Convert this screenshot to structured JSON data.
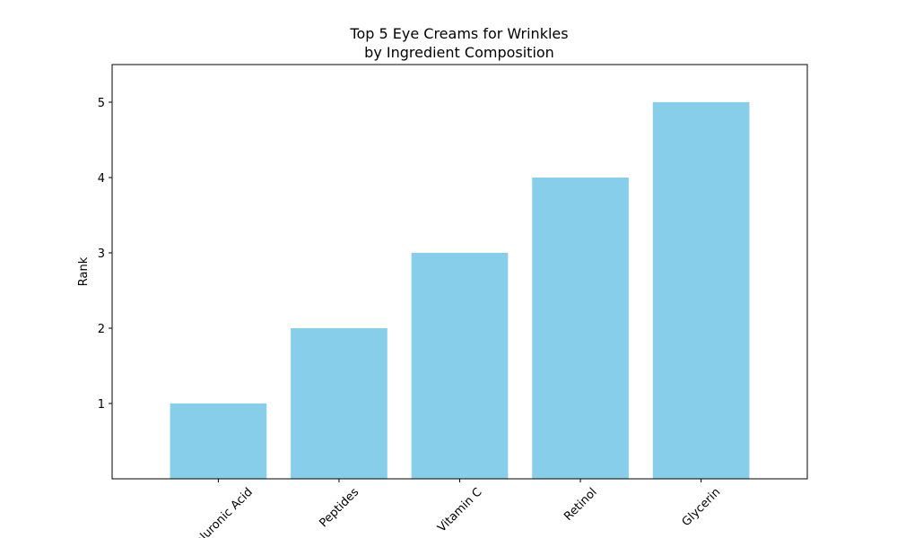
{
  "chart_data": {
    "type": "bar",
    "title": "Top 5 Eye Creams for Wrinkles\nby Ingredient Composition",
    "y_label": "Rank",
    "categories": [
      "Hyaluronic Acid",
      "Peptides",
      "Vitamin C",
      "Retinol",
      "Glycerin"
    ],
    "values": [
      1,
      2,
      3,
      4,
      5
    ],
    "color": "#87ceeb",
    "ylim": [
      0,
      5.5
    ],
    "yticks": [
      1,
      2,
      3,
      4,
      5
    ],
    "grid": false
  }
}
